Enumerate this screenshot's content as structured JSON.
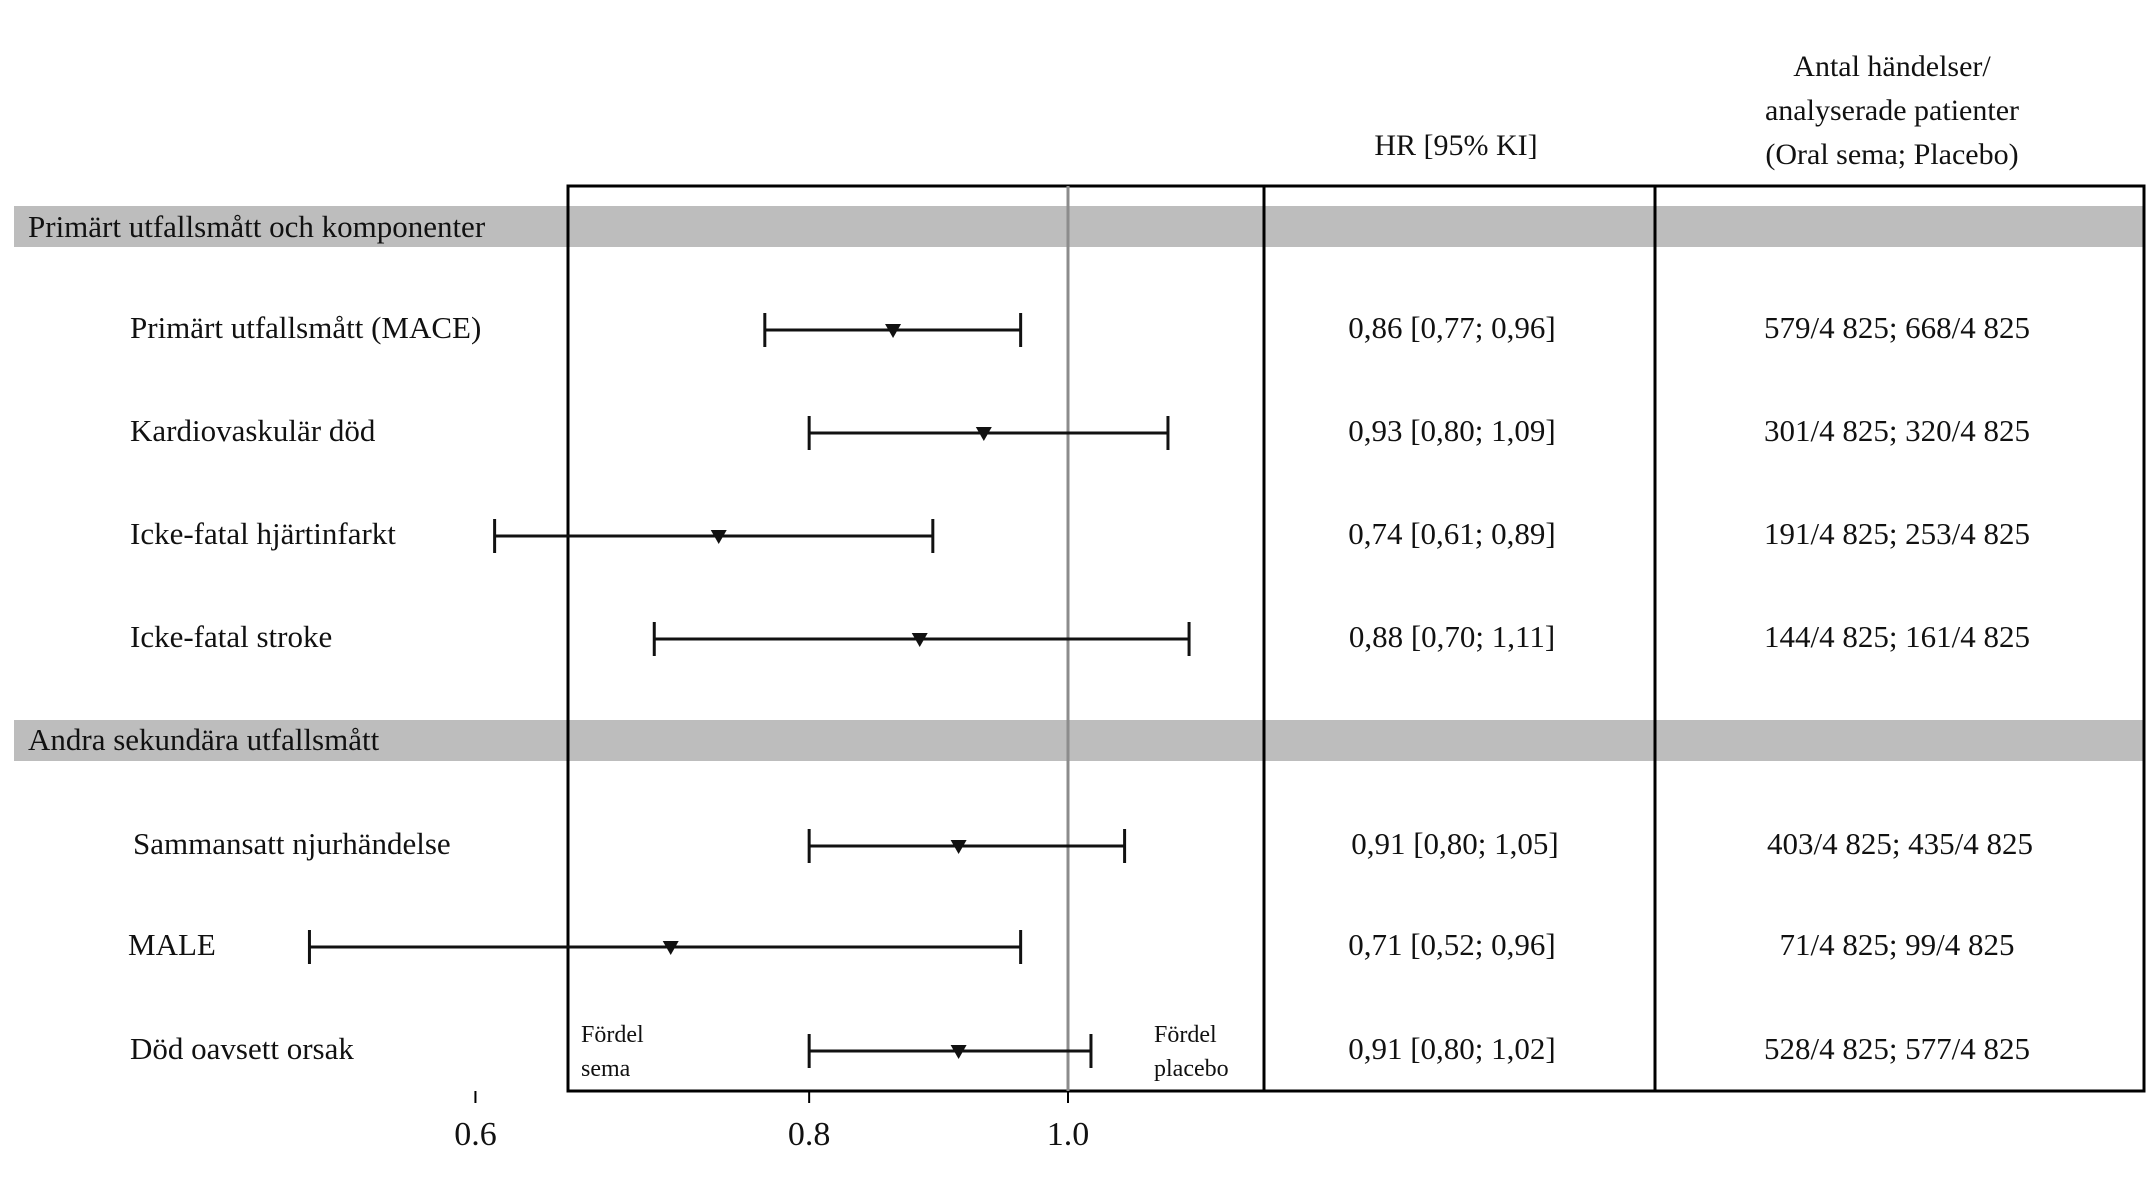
{
  "header": {
    "hr_title": "HR [95% KI]",
    "events_title": [
      "Antal händelser/",
      "analyserade patienter",
      "(Oral sema; Placebo)"
    ]
  },
  "sections": [
    {
      "title": "Primärt utfallsmått och komponenter",
      "rows": [
        {
          "label": "Primärt utfallsmått (MACE)",
          "hr": 0.86,
          "lo": 0.77,
          "hi": 0.96,
          "hr_text": "0,86 [0,77; 0,96]",
          "events": "579/4 825; 668/4 825"
        },
        {
          "label": "Kardiovaskulär död",
          "hr": 0.93,
          "lo": 0.8,
          "hi": 1.09,
          "hr_text": "0,93 [0,80; 1,09]",
          "events": "301/4 825; 320/4 825"
        },
        {
          "label": "Icke-fatal hjärtinfarkt",
          "hr": 0.74,
          "lo": 0.61,
          "hi": 0.89,
          "hr_text": "0,74 [0,61; 0,89]",
          "events": "191/4 825; 253/4 825"
        },
        {
          "label": "Icke-fatal stroke",
          "hr": 0.88,
          "lo": 0.7,
          "hi": 1.11,
          "hr_text": "0,88 [0,70; 1,11]",
          "events": "144/4 825; 161/4 825"
        }
      ]
    },
    {
      "title": "Andra sekundära utfallsmått",
      "rows": [
        {
          "label": "Sammansatt njurhändelse",
          "hr": 0.91,
          "lo": 0.8,
          "hi": 1.05,
          "hr_text": "0,91 [0,80; 1,05]",
          "events": "403/4 825; 435/4 825"
        },
        {
          "label": "MALE",
          "hr": 0.71,
          "lo": 0.52,
          "hi": 0.96,
          "hr_text": "0,71 [0,52; 0,96]",
          "events": "71/4 825; 99/4 825"
        },
        {
          "label": "Död oavsett orsak",
          "hr": 0.91,
          "lo": 0.8,
          "hi": 1.02,
          "hr_text": "0,91 [0,80; 1,02]",
          "events": "528/4 825; 577/4 825"
        }
      ]
    }
  ],
  "annotations": {
    "left": [
      "Fördel",
      "sema"
    ],
    "right": [
      "Fördel",
      "placebo"
    ]
  },
  "chart_data": {
    "type": "forest",
    "scale": "log",
    "reference_line": 1.0,
    "ticks": [
      0.6,
      0.8,
      1.0
    ],
    "tick_labels": [
      "0.6",
      "0.8",
      "1.0"
    ],
    "xlim": [
      0.45,
      1.25
    ],
    "series": [
      {
        "category": "Primärt utfallsmått (MACE)",
        "hr": 0.86,
        "lo": 0.77,
        "hi": 0.96
      },
      {
        "category": "Kardiovaskulär död",
        "hr": 0.93,
        "lo": 0.8,
        "hi": 1.09
      },
      {
        "category": "Icke-fatal hjärtinfarkt",
        "hr": 0.74,
        "lo": 0.61,
        "hi": 0.89
      },
      {
        "category": "Icke-fatal stroke",
        "hr": 0.88,
        "lo": 0.7,
        "hi": 1.11
      },
      {
        "category": "Sammansatt njurhändelse",
        "hr": 0.91,
        "lo": 0.8,
        "hi": 1.05
      },
      {
        "category": "MALE",
        "hr": 0.71,
        "lo": 0.52,
        "hi": 0.96
      },
      {
        "category": "Död oavsett orsak",
        "hr": 0.91,
        "lo": 0.8,
        "hi": 1.02
      }
    ],
    "colors": {
      "section_band": "#bdbdbd",
      "reference_line": "#8c8c8c",
      "marks": "#111111"
    }
  }
}
